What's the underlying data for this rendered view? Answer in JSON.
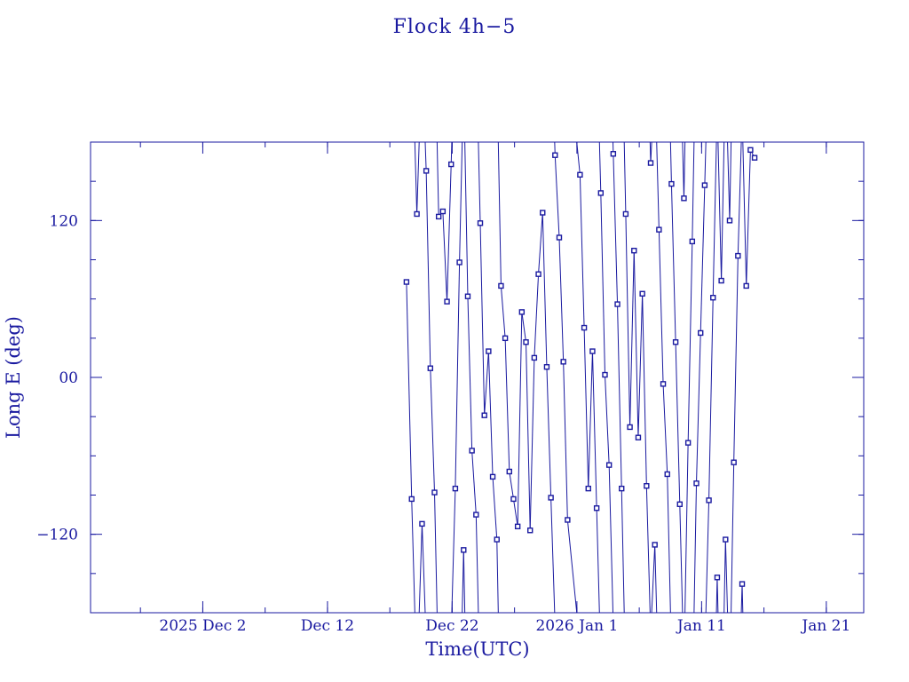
{
  "chart_data": {
    "type": "scatter",
    "title": "Flock 4h−5",
    "xlabel": "Time(UTC)",
    "ylabel": "Long E (deg)",
    "xlim": [
      "2025-11-23",
      "2026-01-24"
    ],
    "ylim": [
      -180,
      180
    ],
    "x_ticks": [
      {
        "date": "2025-12-02",
        "label": "2025 Dec  2"
      },
      {
        "date": "2025-12-12",
        "label": "Dec 12"
      },
      {
        "date": "2025-12-22",
        "label": "Dec 22"
      },
      {
        "date": "2026-01-01",
        "label": "2026 Jan  1"
      },
      {
        "date": "2026-01-11",
        "label": "Jan 11"
      },
      {
        "date": "2026-01-21",
        "label": "Jan 21"
      }
    ],
    "y_ticks": [
      {
        "value": 120,
        "label": "120"
      },
      {
        "value": 0,
        "label": "00"
      },
      {
        "value": -120,
        "label": "−120"
      }
    ],
    "grid": false,
    "color": "#1a1aa0",
    "marker": "open-square",
    "connected": true,
    "series": [
      {
        "points": [
          [
            "2025-12-18T08:00",
            73
          ],
          [
            "2025-12-18T18:00",
            -93
          ],
          [
            "2025-12-19T04:00",
            125
          ],
          [
            "2025-12-19T14:00",
            -112
          ],
          [
            "2025-12-19T22:00",
            158
          ],
          [
            "2025-12-20T06:00",
            7
          ],
          [
            "2025-12-20T14:00",
            -88
          ],
          [
            "2025-12-20T22:00",
            123
          ],
          [
            "2025-12-21T06:00",
            127
          ],
          [
            "2025-12-21T14:00",
            58
          ],
          [
            "2025-12-21T22:00",
            163
          ],
          [
            "2025-12-22T06:00",
            -85
          ],
          [
            "2025-12-22T14:00",
            88
          ],
          [
            "2025-12-22T22:00",
            -132
          ],
          [
            "2025-12-23T06:00",
            62
          ],
          [
            "2025-12-23T14:00",
            -56
          ],
          [
            "2025-12-23T22:00",
            -105
          ],
          [
            "2025-12-24T06:00",
            118
          ],
          [
            "2025-12-24T14:00",
            -29
          ],
          [
            "2025-12-24T22:00",
            20
          ],
          [
            "2025-12-25T06:00",
            -76
          ],
          [
            "2025-12-25T14:00",
            -124
          ],
          [
            "2025-12-25T22:00",
            70
          ],
          [
            "2025-12-26T06:00",
            30
          ],
          [
            "2025-12-26T14:00",
            -72
          ],
          [
            "2025-12-26T22:00",
            -93
          ],
          [
            "2025-12-27T06:00",
            -114
          ],
          [
            "2025-12-27T14:00",
            50
          ],
          [
            "2025-12-27T22:00",
            27
          ],
          [
            "2025-12-28T06:00",
            -117
          ],
          [
            "2025-12-28T14:00",
            15
          ],
          [
            "2025-12-28T22:00",
            79
          ],
          [
            "2025-12-29T06:00",
            126
          ],
          [
            "2025-12-29T14:00",
            8
          ],
          [
            "2025-12-29T22:00",
            -92
          ],
          [
            "2025-12-30T06:00",
            170
          ],
          [
            "2025-12-30T14:00",
            107
          ],
          [
            "2025-12-30T22:00",
            12
          ],
          [
            "2025-12-31T06:00",
            -109
          ],
          [
            "2026-01-01T06:00",
            155
          ],
          [
            "2026-01-01T14:00",
            38
          ],
          [
            "2026-01-01T22:00",
            -85
          ],
          [
            "2026-01-02T06:00",
            20
          ],
          [
            "2026-01-02T14:00",
            -100
          ],
          [
            "2026-01-02T22:00",
            141
          ],
          [
            "2026-01-03T06:00",
            2
          ],
          [
            "2026-01-03T14:00",
            -67
          ],
          [
            "2026-01-03T22:00",
            171
          ],
          [
            "2026-01-04T06:00",
            56
          ],
          [
            "2026-01-04T14:00",
            -85
          ],
          [
            "2026-01-04T22:00",
            125
          ],
          [
            "2026-01-05T06:00",
            -38
          ],
          [
            "2026-01-05T14:00",
            97
          ],
          [
            "2026-01-05T22:00",
            -46
          ],
          [
            "2026-01-06T06:00",
            64
          ],
          [
            "2026-01-06T14:00",
            -83
          ],
          [
            "2026-01-06T22:00",
            164
          ],
          [
            "2026-01-07T06:00",
            -128
          ],
          [
            "2026-01-07T14:00",
            113
          ],
          [
            "2026-01-07T22:00",
            -5
          ],
          [
            "2026-01-08T06:00",
            -74
          ],
          [
            "2026-01-08T14:00",
            148
          ],
          [
            "2026-01-08T22:00",
            27
          ],
          [
            "2026-01-09T06:00",
            -97
          ],
          [
            "2026-01-09T14:00",
            137
          ],
          [
            "2026-01-09T22:00",
            -50
          ],
          [
            "2026-01-10T06:00",
            104
          ],
          [
            "2026-01-10T14:00",
            -81
          ],
          [
            "2026-01-10T22:00",
            34
          ],
          [
            "2026-01-11T06:00",
            147
          ],
          [
            "2026-01-11T14:00",
            -94
          ],
          [
            "2026-01-11T22:00",
            61
          ],
          [
            "2026-01-12T06:00",
            -153
          ],
          [
            "2026-01-12T14:00",
            74
          ],
          [
            "2026-01-12T22:00",
            -124
          ],
          [
            "2026-01-13T06:00",
            120
          ],
          [
            "2026-01-13T14:00",
            -65
          ],
          [
            "2026-01-13T22:00",
            93
          ],
          [
            "2026-01-14T06:00",
            -158
          ],
          [
            "2026-01-14T14:00",
            70
          ],
          [
            "2026-01-14T22:00",
            174
          ],
          [
            "2026-01-15T06:00",
            168
          ]
        ]
      }
    ]
  }
}
